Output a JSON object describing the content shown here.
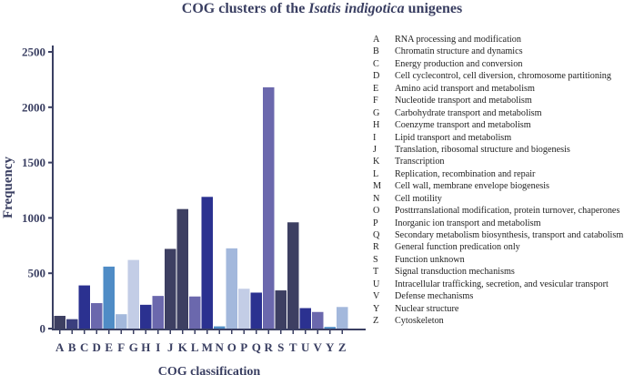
{
  "chart_data": {
    "type": "bar",
    "title_prefix": "COG clusters of the ",
    "title_italic": "Isatis indigotica",
    "title_suffix": " unigenes",
    "xlabel": "COG classification",
    "ylabel": "Frequency",
    "ylim": [
      0,
      2500
    ],
    "yticks": [
      "0",
      "500",
      "1000",
      "1500",
      "2000",
      "2500"
    ],
    "grid": false,
    "legend_position": "right",
    "categories": [
      "A",
      "B",
      "C",
      "D",
      "E",
      "F",
      "G",
      "H",
      "I",
      "J",
      "K",
      "L",
      "M",
      "N",
      "O",
      "P",
      "Q",
      "R",
      "S",
      "T",
      "U",
      "V",
      "Y",
      "Z"
    ],
    "values": [
      115,
      85,
      390,
      230,
      560,
      130,
      620,
      215,
      295,
      720,
      1080,
      290,
      1190,
      20,
      725,
      360,
      325,
      2180,
      345,
      960,
      185,
      150,
      15,
      195
    ],
    "colors": [
      "#3d3f62",
      "#3b3f7e",
      "#2b3190",
      "#6b68ad",
      "#4f8cc6",
      "#a3b8dc",
      "#c3cde6",
      "#2b3190",
      "#6b68ad",
      "#3d3f62",
      "#3d3f62",
      "#6b68ad",
      "#2b3190",
      "#4f8cc6",
      "#a3b8dc",
      "#c3cde6",
      "#2b3190",
      "#6b68ad",
      "#3d3f62",
      "#3d3f62",
      "#2b3190",
      "#6b68ad",
      "#4f8cc6",
      "#a3b8dc"
    ],
    "legend": [
      {
        "code": "A",
        "label": "RNA processing and modification"
      },
      {
        "code": "B",
        "label": "Chromatin structure and dynamics"
      },
      {
        "code": "C",
        "label": "Energy production and conversion"
      },
      {
        "code": "D",
        "label": "Cell cyclecontrol, cell diversion, chromosome partitioning"
      },
      {
        "code": "E",
        "label": "Amino acid transport and metabolism"
      },
      {
        "code": "F",
        "label": "Nucleotide transport and metabolism"
      },
      {
        "code": "G",
        "label": "Carbohydrate transport and metabolism"
      },
      {
        "code": "H",
        "label": "Coenzyme transport and metabolism"
      },
      {
        "code": "I",
        "label": "Lipid  transport and metabolism"
      },
      {
        "code": "J",
        "label": "Translation, ribosomal structure and biogenesis"
      },
      {
        "code": "K",
        "label": "Transcription"
      },
      {
        "code": "L",
        "label": "Replication, recombination and repair"
      },
      {
        "code": "M",
        "label": "Cell wall, membrane envelope biogenesis"
      },
      {
        "code": "N",
        "label": "Cell motility"
      },
      {
        "code": "O",
        "label": "Posttrranslational modification, protein turnover, chaperones"
      },
      {
        "code": "P",
        "label": "Inorganic ion transport and metabolism"
      },
      {
        "code": "Q",
        "label": "Secondary metabolism biosynthesis, transport and catabolism"
      },
      {
        "code": "R",
        "label": "General function predication only"
      },
      {
        "code": "S",
        "label": "Function unknown"
      },
      {
        "code": "T",
        "label": "Signal transduction mechanisms"
      },
      {
        "code": "U",
        "label": "Intracellular trafficking, secretion, and vesicular transport"
      },
      {
        "code": "V",
        "label": "Defense mechanisms"
      },
      {
        "code": "Y",
        "label": "Nuclear structure"
      },
      {
        "code": "Z",
        "label": "Cytoskeleton"
      }
    ]
  }
}
